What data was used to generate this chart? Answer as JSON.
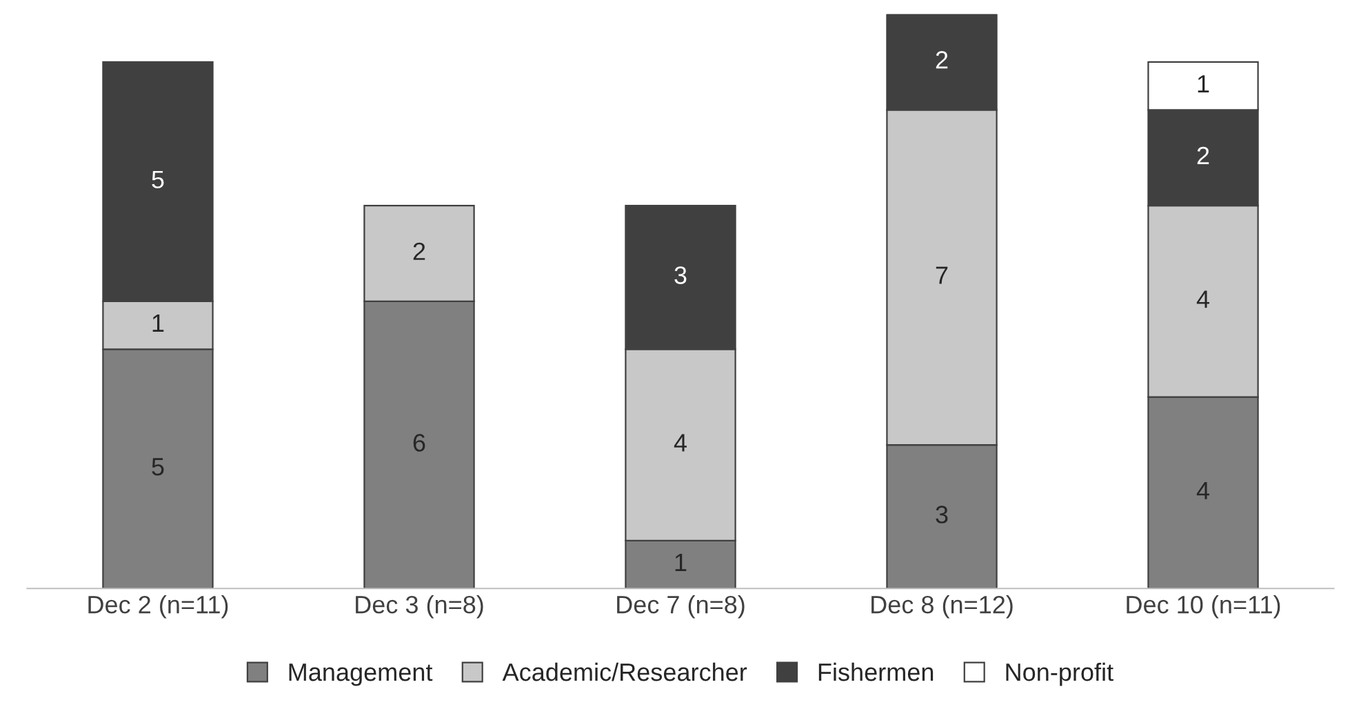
{
  "chart_data": {
    "type": "bar",
    "stacked": true,
    "categories": [
      "Dec 2 (n=11)",
      "Dec 3 (n=8)",
      "Dec 7 (n=8)",
      "Dec 8 (n=12)",
      "Dec 10 (n=11)"
    ],
    "series": [
      {
        "name": "Management",
        "color": "#808080",
        "values": [
          5,
          6,
          1,
          3,
          4
        ]
      },
      {
        "name": "Academic/Researcher",
        "color": "#c8c8c8",
        "values": [
          1,
          2,
          4,
          7,
          4
        ]
      },
      {
        "name": "Fishermen",
        "color": "#404040",
        "values": [
          5,
          null,
          3,
          2,
          2
        ]
      },
      {
        "name": "Non-profit",
        "color": "#ffffff",
        "values": [
          null,
          null,
          null,
          null,
          1
        ]
      }
    ],
    "data_labels": true,
    "ylim": [
      0,
      12
    ],
    "tick_labels": "x",
    "legend": "bottom"
  }
}
